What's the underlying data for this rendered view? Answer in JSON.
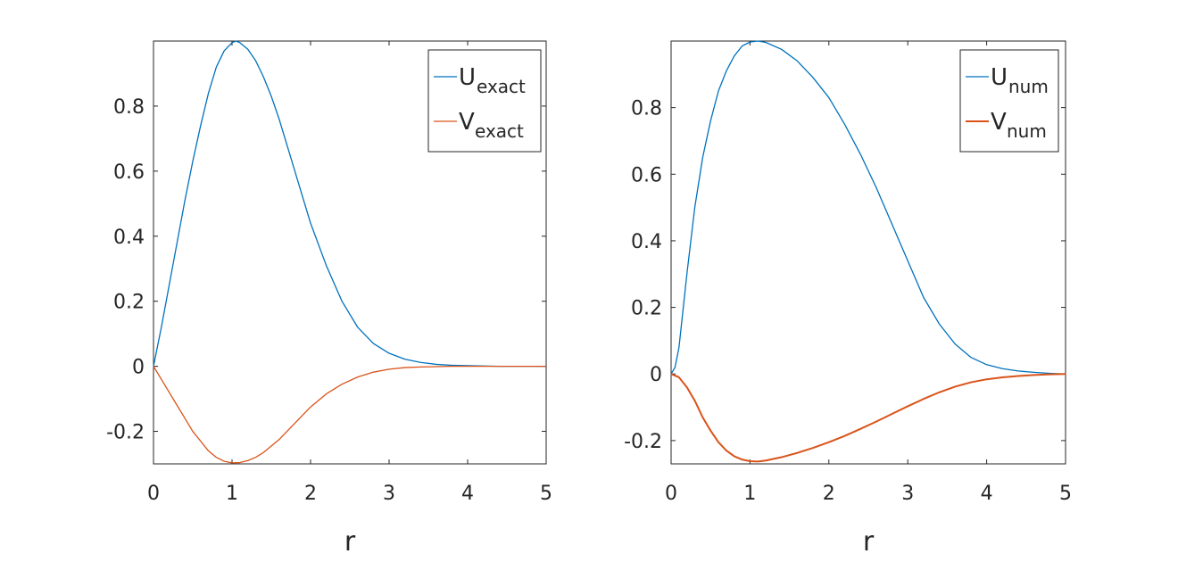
{
  "chart_data": [
    {
      "type": "line",
      "xlabel": "r",
      "ylabel": "",
      "xlim": [
        0,
        5
      ],
      "ylim": [
        -0.3,
        1.0
      ],
      "xticks": [
        0,
        1,
        2,
        3,
        4,
        5
      ],
      "yticks": [
        -0.2,
        0,
        0.2,
        0.4,
        0.6,
        0.8
      ],
      "ytick_labels": [
        "-0.2",
        "0",
        "0.2",
        "0.4",
        "0.6",
        "0.8"
      ],
      "grid": false,
      "legend_placement": "top-right",
      "series": [
        {
          "name_main": "U",
          "name_sub": "exact",
          "color": "#0072BD",
          "x": [
            0,
            0.1,
            0.2,
            0.3,
            0.4,
            0.5,
            0.6,
            0.7,
            0.8,
            0.9,
            1.0,
            1.05,
            1.1,
            1.2,
            1.3,
            1.4,
            1.5,
            1.6,
            1.7,
            1.8,
            1.9,
            2.0,
            2.2,
            2.4,
            2.6,
            2.8,
            3.0,
            3.2,
            3.4,
            3.6,
            3.8,
            4.0,
            4.2,
            4.4,
            4.6,
            4.8,
            5.0
          ],
          "y": [
            0,
            0.12,
            0.25,
            0.38,
            0.51,
            0.63,
            0.74,
            0.84,
            0.92,
            0.97,
            0.995,
            1.0,
            0.995,
            0.975,
            0.94,
            0.89,
            0.83,
            0.76,
            0.68,
            0.6,
            0.52,
            0.44,
            0.31,
            0.2,
            0.12,
            0.07,
            0.04,
            0.022,
            0.012,
            0.006,
            0.003,
            0.002,
            0.001,
            0.0,
            0.0,
            0.0,
            0.0
          ]
        },
        {
          "name_main": "V",
          "name_sub": "exact",
          "color": "#D95319",
          "x": [
            0,
            0.1,
            0.2,
            0.3,
            0.4,
            0.5,
            0.6,
            0.7,
            0.8,
            0.9,
            1.0,
            1.1,
            1.2,
            1.3,
            1.4,
            1.5,
            1.6,
            1.7,
            1.8,
            1.9,
            2.0,
            2.2,
            2.4,
            2.6,
            2.8,
            3.0,
            3.2,
            3.4,
            3.6,
            3.8,
            4.0,
            4.2,
            4.4,
            4.6,
            4.8,
            5.0
          ],
          "y": [
            0,
            -0.04,
            -0.08,
            -0.12,
            -0.16,
            -0.2,
            -0.23,
            -0.26,
            -0.28,
            -0.292,
            -0.297,
            -0.296,
            -0.29,
            -0.28,
            -0.265,
            -0.245,
            -0.225,
            -0.2,
            -0.175,
            -0.15,
            -0.125,
            -0.085,
            -0.055,
            -0.033,
            -0.018,
            -0.009,
            -0.004,
            -0.002,
            -0.001,
            0.0,
            0.0,
            0.0,
            0.0,
            0.0,
            0.0,
            0.0
          ]
        }
      ]
    },
    {
      "type": "line",
      "xlabel": "r",
      "ylabel": "",
      "xlim": [
        0,
        5
      ],
      "ylim": [
        -0.27,
        1.0
      ],
      "xticks": [
        0,
        1,
        2,
        3,
        4,
        5
      ],
      "yticks": [
        -0.2,
        0,
        0.2,
        0.4,
        0.6,
        0.8
      ],
      "ytick_labels": [
        "-0.2",
        "0",
        "0.2",
        "0.4",
        "0.6",
        "0.8"
      ],
      "grid": false,
      "legend_placement": "top-right",
      "series": [
        {
          "name_main": "U",
          "name_sub": "num",
          "color": "#0072BD",
          "x": [
            0,
            0.05,
            0.1,
            0.2,
            0.3,
            0.4,
            0.5,
            0.6,
            0.7,
            0.8,
            0.9,
            1.0,
            1.1,
            1.2,
            1.4,
            1.6,
            1.8,
            2.0,
            2.2,
            2.4,
            2.6,
            2.8,
            3.0,
            3.2,
            3.4,
            3.6,
            3.8,
            4.0,
            4.2,
            4.4,
            4.6,
            4.8,
            5.0
          ],
          "y": [
            0,
            0.02,
            0.08,
            0.3,
            0.5,
            0.65,
            0.76,
            0.85,
            0.91,
            0.955,
            0.985,
            0.997,
            1.0,
            0.996,
            0.975,
            0.94,
            0.89,
            0.83,
            0.75,
            0.66,
            0.56,
            0.45,
            0.34,
            0.23,
            0.15,
            0.09,
            0.05,
            0.028,
            0.016,
            0.009,
            0.005,
            0.002,
            0.0
          ]
        },
        {
          "name_main": "V",
          "name_sub": "num",
          "color": "#D95319",
          "x": [
            0,
            0.1,
            0.2,
            0.3,
            0.4,
            0.5,
            0.6,
            0.7,
            0.8,
            0.9,
            1.0,
            1.1,
            1.2,
            1.4,
            1.6,
            1.8,
            2.0,
            2.2,
            2.4,
            2.6,
            2.8,
            3.0,
            3.2,
            3.4,
            3.6,
            3.8,
            4.0,
            4.2,
            4.4,
            4.6,
            4.8,
            5.0
          ],
          "y": [
            0,
            -0.01,
            -0.04,
            -0.08,
            -0.13,
            -0.17,
            -0.205,
            -0.23,
            -0.247,
            -0.257,
            -0.262,
            -0.263,
            -0.26,
            -0.25,
            -0.237,
            -0.222,
            -0.205,
            -0.186,
            -0.165,
            -0.143,
            -0.12,
            -0.097,
            -0.075,
            -0.055,
            -0.038,
            -0.025,
            -0.016,
            -0.01,
            -0.006,
            -0.003,
            -0.001,
            0.0
          ]
        }
      ]
    }
  ]
}
